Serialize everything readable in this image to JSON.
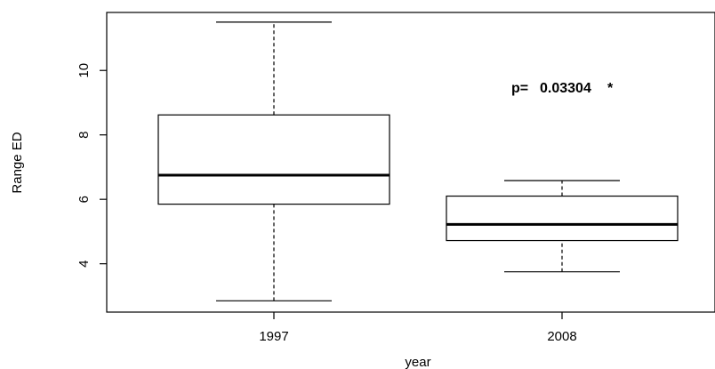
{
  "chart_data": {
    "type": "boxplot",
    "title": "",
    "xlabel": "year",
    "ylabel": "Range ED",
    "ylim": [
      2.5,
      11.8
    ],
    "y_ticks": [
      4,
      6,
      8,
      10
    ],
    "categories": [
      "1997",
      "2008"
    ],
    "boxes": [
      {
        "category": "1997",
        "whisker_low": 2.85,
        "q1": 5.85,
        "median": 6.75,
        "q3": 8.62,
        "whisker_high": 11.5
      },
      {
        "category": "2008",
        "whisker_low": 3.75,
        "q1": 4.72,
        "median": 5.22,
        "q3": 6.1,
        "whisker_high": 6.58
      }
    ],
    "annotation": {
      "label": "p=",
      "value": "0.03304",
      "marker": "*"
    },
    "grid": false,
    "legend": "none"
  }
}
